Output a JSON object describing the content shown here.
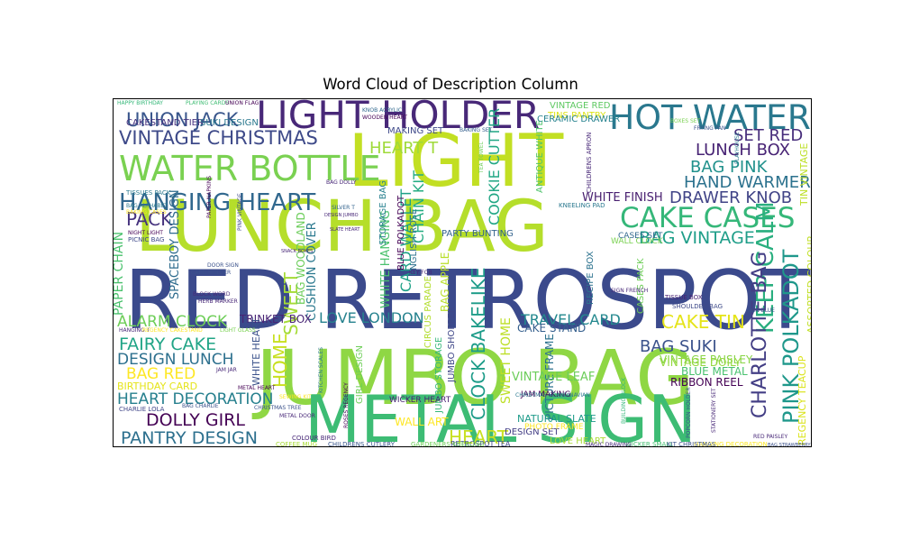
{
  "chart_data": {
    "type": "wordcloud",
    "title": "Word Cloud of Description Column",
    "words": [
      {
        "text": "RED RETROSPOT",
        "color": "#3b4a8c"
      },
      {
        "text": "JUMBO BAG",
        "color": "#8fd744"
      },
      {
        "text": "LUNCH BAG",
        "color": "#b5de2b"
      },
      {
        "text": "METAL SIGN",
        "color": "#3dbc74"
      },
      {
        "text": "LIGHT",
        "color": "#c2df23"
      },
      {
        "text": "LIGHT HOLDER",
        "color": "#482878"
      },
      {
        "text": "HOT WATER",
        "color": "#2a788e"
      },
      {
        "text": "WATER BOTTLE",
        "color": "#7ad151"
      },
      {
        "text": "VINTAGE CHRISTMAS",
        "color": "#3e4a89"
      },
      {
        "text": "HANGING HEART",
        "color": "#31688e"
      },
      {
        "text": "UNION JACK",
        "color": "#39568c"
      },
      {
        "text": "CAKE CASES",
        "color": "#35b779"
      },
      {
        "text": "LUNCH BOX",
        "color": "#482475"
      },
      {
        "text": "SET RED",
        "color": "#472d7b"
      },
      {
        "text": "HAND WARMER",
        "color": "#2c728e"
      },
      {
        "text": "BAG PINK",
        "color": "#21918c"
      },
      {
        "text": "DRAWER KNOB",
        "color": "#414487"
      },
      {
        "text": "BAG VINTAGE",
        "color": "#1f9e89"
      },
      {
        "text": "ALARM CLOCK",
        "color": "#6ece58"
      },
      {
        "text": "FAIRY CAKE",
        "color": "#20a486"
      },
      {
        "text": "DESIGN LUNCH",
        "color": "#2d708e"
      },
      {
        "text": "BAG RED",
        "color": "#fde725"
      },
      {
        "text": "HEART DECORATION",
        "color": "#27808e"
      },
      {
        "text": "DOLLY GIRL",
        "color": "#440154"
      },
      {
        "text": "PANTRY DESIGN",
        "color": "#2d708e"
      },
      {
        "text": "BAG SUKI",
        "color": "#3b528b"
      },
      {
        "text": "CAKE TIN",
        "color": "#e5e419"
      },
      {
        "text": "KEEP CALM",
        "color": "#29af7f"
      },
      {
        "text": "CHARLOTTE BAG",
        "color": "#433e85"
      },
      {
        "text": "PINK POLKADOT",
        "color": "#1f988b"
      },
      {
        "text": "LOVE LONDON",
        "color": "#26828e"
      },
      {
        "text": "TRAVEL CARD",
        "color": "#23888e"
      },
      {
        "text": "HEART T",
        "color": "#9fda3a"
      },
      {
        "text": "PACK",
        "color": "#46337e"
      },
      {
        "text": "CLOCK BAKELIKE",
        "color": "#1e9c89"
      },
      {
        "text": "HOME",
        "color": "#c8e020"
      },
      {
        "text": "SWEET",
        "color": "#a5db36"
      },
      {
        "text": "COOKIE CUTTER",
        "color": "#22a785"
      },
      {
        "text": "CHAIN KIT",
        "color": "#25ac82"
      },
      {
        "text": "CARD WALLET",
        "color": "#1fa187"
      },
      {
        "text": "WHITE FINISH",
        "color": "#481f70"
      },
      {
        "text": "VINTAGE PAISLEY",
        "color": "#89d548"
      },
      {
        "text": "VINTAGE DOILY",
        "color": "#95d840"
      },
      {
        "text": "BLUE METAL",
        "color": "#48c16e"
      },
      {
        "text": "RIBBON REEL",
        "color": "#440154"
      },
      {
        "text": "REGENCY TEACUP",
        "color": "#dae319"
      },
      {
        "text": "ASSORTED COLOUR",
        "color": "#c0df25"
      },
      {
        "text": "TIN VINTAGE",
        "color": "#bddf26"
      },
      {
        "text": "PAPER CHAIN",
        "color": "#4ac16d"
      },
      {
        "text": "SPACEBOY DESIGN",
        "color": "#2f6c8e"
      },
      {
        "text": "WHITE HANGING",
        "color": "#4ac16d"
      },
      {
        "text": "CUSHION COVER",
        "color": "#2a788e"
      },
      {
        "text": "BAG WOODLAND",
        "color": "#6ccd5a"
      },
      {
        "text": "TRINKET BOX",
        "color": "#482475"
      },
      {
        "text": "PICTURE FRAME",
        "color": "#2c728e"
      },
      {
        "text": "SWEET HOME",
        "color": "#bddf26"
      },
      {
        "text": "CAKE STAND",
        "color": "#355f8d"
      },
      {
        "text": "VINTAGE LEAF",
        "color": "#6ccd5a"
      },
      {
        "text": "NATURAL SLATE",
        "color": "#1e9b8a"
      },
      {
        "text": "HEART",
        "color": "#c8e020"
      },
      {
        "text": "WALL ART",
        "color": "#fde725"
      },
      {
        "text": "DESIGN SET",
        "color": "#433e85"
      },
      {
        "text": "LOVE HEART",
        "color": "#a8db34"
      },
      {
        "text": "BIRTHDAY CARD",
        "color": "#e5e419"
      },
      {
        "text": "CAKESTAND TIER",
        "color": "#46327e"
      },
      {
        "text": "SUKI DESIGN",
        "color": "#2a788e"
      },
      {
        "text": "VINTAGE RED",
        "color": "#5ec962"
      },
      {
        "text": "TINS PANTRY",
        "color": "#dde318"
      },
      {
        "text": "CERAMIC DRAWER",
        "color": "#26828e"
      },
      {
        "text": "ANTIQUE WHITE",
        "color": "#4ec36b"
      },
      {
        "text": "WALL CLOCK",
        "color": "#7ad151"
      },
      {
        "text": "CASES SET",
        "color": "#31688e"
      },
      {
        "text": "RECIPE BOX",
        "color": "#2c728e"
      },
      {
        "text": "CASES PACK",
        "color": "#6ece58"
      },
      {
        "text": "ENGLISH ROSE",
        "color": "#2d708e"
      },
      {
        "text": "BLUE POLKADOT",
        "color": "#440154"
      },
      {
        "text": "STORAGE BAG",
        "color": "#27808e"
      },
      {
        "text": "PARTY BUNTING",
        "color": "#33638d"
      },
      {
        "text": "BAG APPLE",
        "color": "#b8de29"
      },
      {
        "text": "CIRCUS PARADE",
        "color": "#b2dd2d"
      },
      {
        "text": "JUMBO STORAGE",
        "color": "#35b779"
      },
      {
        "text": "JUMBO SHOPPER",
        "color": "#3f4788"
      },
      {
        "text": "GIRL DESIGN",
        "color": "#6ece58"
      },
      {
        "text": "WHITE HEART",
        "color": "#3b528b"
      },
      {
        "text": "MAKING SET",
        "color": "#3e4989"
      },
      {
        "text": "JAM MAKING",
        "color": "#440154"
      },
      {
        "text": "CHRISTMAS SCANDINAVIAN",
        "color": "#2a788e"
      },
      {
        "text": "WICKER HEART",
        "color": "#482173"
      },
      {
        "text": "PHOTO FRAME",
        "color": "#fde725"
      },
      {
        "text": "RETROSPOT TEA",
        "color": "#3e4989"
      },
      {
        "text": "GARDENERS KNEELING",
        "color": "#6ece58"
      },
      {
        "text": "CHILDRENS CUTLERY",
        "color": "#39568c"
      },
      {
        "text": "HANGING DECORATION",
        "color": "#fde725"
      },
      {
        "text": "WICKER SMALL",
        "color": "#44bf70"
      },
      {
        "text": "KIT CHRISTMAS",
        "color": "#3b528b"
      },
      {
        "text": "MAGIC DRAWING",
        "color": "#472d7b"
      },
      {
        "text": "BAG STRAWBERRY",
        "color": "#3b528b"
      },
      {
        "text": "COFFEE MUG",
        "color": "#a8db34"
      },
      {
        "text": "COLOUR BIRD",
        "color": "#482878"
      },
      {
        "text": "CHARLIE LOLA",
        "color": "#404688"
      },
      {
        "text": "HAPPY BIRTHDAY",
        "color": "#35b779"
      },
      {
        "text": "PLAYING CARDS",
        "color": "#3fbc73"
      },
      {
        "text": "UNION FLAG",
        "color": "#440154"
      },
      {
        "text": "KNOB ACRYLIC",
        "color": "#31688e"
      },
      {
        "text": "WOODEN HEART",
        "color": "#440154"
      },
      {
        "text": "BAKING SET",
        "color": "#355f8d"
      },
      {
        "text": "TEA TOWEL",
        "color": "#6ece58"
      },
      {
        "text": "PLAYHOUSE",
        "color": "#2a788e"
      },
      {
        "text": "CHILDRENS APRON",
        "color": "#482878"
      },
      {
        "text": "BOXES SET",
        "color": "#7ad151"
      },
      {
        "text": "FRYING PAN",
        "color": "#3b528b"
      },
      {
        "text": "SHOULDER BAG",
        "color": "#3e4a89"
      },
      {
        "text": "TISSUE BOX",
        "color": "#482173"
      },
      {
        "text": "SIGN FRENCH",
        "color": "#482878"
      },
      {
        "text": "KNEELING PAD",
        "color": "#2a788e"
      },
      {
        "text": "SILVER T",
        "color": "#33638d"
      },
      {
        "text": "DESIGN JUMBO",
        "color": "#482878"
      },
      {
        "text": "SLATE HEART",
        "color": "#482878"
      },
      {
        "text": "BAG DOLLY",
        "color": "#482878"
      },
      {
        "text": "TISSUES PACK",
        "color": "#2a788e"
      },
      {
        "text": "BAG ALPHABET",
        "color": "#2a788e"
      },
      {
        "text": "BAKING CASES",
        "color": "#fde725"
      },
      {
        "text": "PINK VINTAGE",
        "color": "#3e4a89"
      },
      {
        "text": "PAPER NAPKINS",
        "color": "#440154"
      },
      {
        "text": "PICNIC BAG",
        "color": "#3e4989"
      },
      {
        "text": "NIGHT LIGHT",
        "color": "#440154"
      },
      {
        "text": "SNACK BOXES",
        "color": "#482878"
      },
      {
        "text": "DOOR SIGN",
        "color": "#3b528b"
      },
      {
        "text": "CARD HOLDER",
        "color": "#3b528b"
      },
      {
        "text": "BLOCK WORD",
        "color": "#482878"
      },
      {
        "text": "HERB MARKER",
        "color": "#482878"
      },
      {
        "text": "CHRISTMAS TREE",
        "color": "#3b528b"
      },
      {
        "text": "METAL DOOR",
        "color": "#482878"
      },
      {
        "text": "KITCHEN SCALES",
        "color": "#2a788e"
      },
      {
        "text": "ROSES REGENCY",
        "color": "#440154"
      },
      {
        "text": "SEWING KIT",
        "color": "#fde725"
      },
      {
        "text": "BUILDING BLOCK",
        "color": "#35b779"
      },
      {
        "text": "POPCORN HOLDER",
        "color": "#3b528b"
      },
      {
        "text": "STATIONERY SET",
        "color": "#482878"
      },
      {
        "text": "RED PAISLEY",
        "color": "#482878"
      },
      {
        "text": "SIGN BLUE",
        "color": "#3b528b"
      },
      {
        "text": "HANGING T",
        "color": "#482878"
      },
      {
        "text": "REGENCY CAKESTAND",
        "color": "#fde725"
      },
      {
        "text": "LIGHT GLASS",
        "color": "#7ad151"
      },
      {
        "text": "KEY FOB",
        "color": "#482878"
      },
      {
        "text": "BAG CHARLIE",
        "color": "#3b528b"
      },
      {
        "text": "METAL HEART",
        "color": "#440154"
      },
      {
        "text": "JAM JAR",
        "color": "#482878"
      }
    ]
  }
}
